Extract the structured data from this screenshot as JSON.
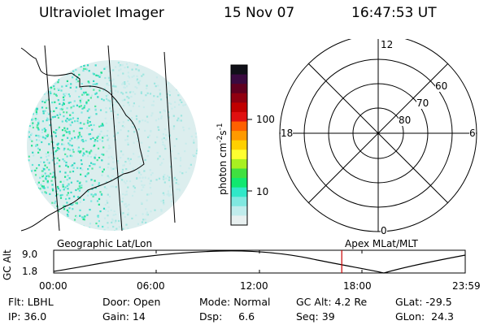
{
  "header": {
    "instrument": "Ultraviolet Imager",
    "date": "15 Nov 07",
    "time": "16:47:53 UT"
  },
  "colorbar": {
    "unit_label": "photon cm",
    "unit_sup1": "-2",
    "unit_mid": "s",
    "unit_sup2": "-1",
    "ticks": [
      "100",
      "10"
    ],
    "scale": "log",
    "colors": [
      "#101018",
      "#3a0a40",
      "#600020",
      "#900010",
      "#c00000",
      "#e01010",
      "#ff6000",
      "#ff9a00",
      "#ffd000",
      "#ffff30",
      "#a8f020",
      "#40e040",
      "#10e870",
      "#30e8c8",
      "#80e8e0",
      "#c0ecec",
      "#e8f0f0"
    ]
  },
  "polar_plot": {
    "latitude_labels": [
      "60",
      "70",
      "80"
    ],
    "mlt_labels": {
      "top": "12",
      "left": "18",
      "right": "6",
      "bottom": "0"
    }
  },
  "timeline": {
    "y_label": "GC Alt",
    "y_ticks": [
      "9.0",
      "1.8"
    ],
    "left_caption": "Geographic Lat/Lon",
    "right_caption": "Apex MLat/MLT",
    "x_ticks": [
      "00:00",
      "06:00",
      "12:00",
      "18:00",
      "23:59"
    ],
    "marker_time_hours": 16.8,
    "marker_color": "#cc0000"
  },
  "status": {
    "row1": [
      "Flt: LBHL",
      "Door: Open",
      "Mode: Normal",
      "GC Alt: 4.2 Re",
      "GLat: -29.5"
    ],
    "row2": [
      "IP: 36.0",
      "Gain: 14",
      "Dsp:     6.6",
      "Seq: 39",
      "GLon:  24.3"
    ]
  }
}
